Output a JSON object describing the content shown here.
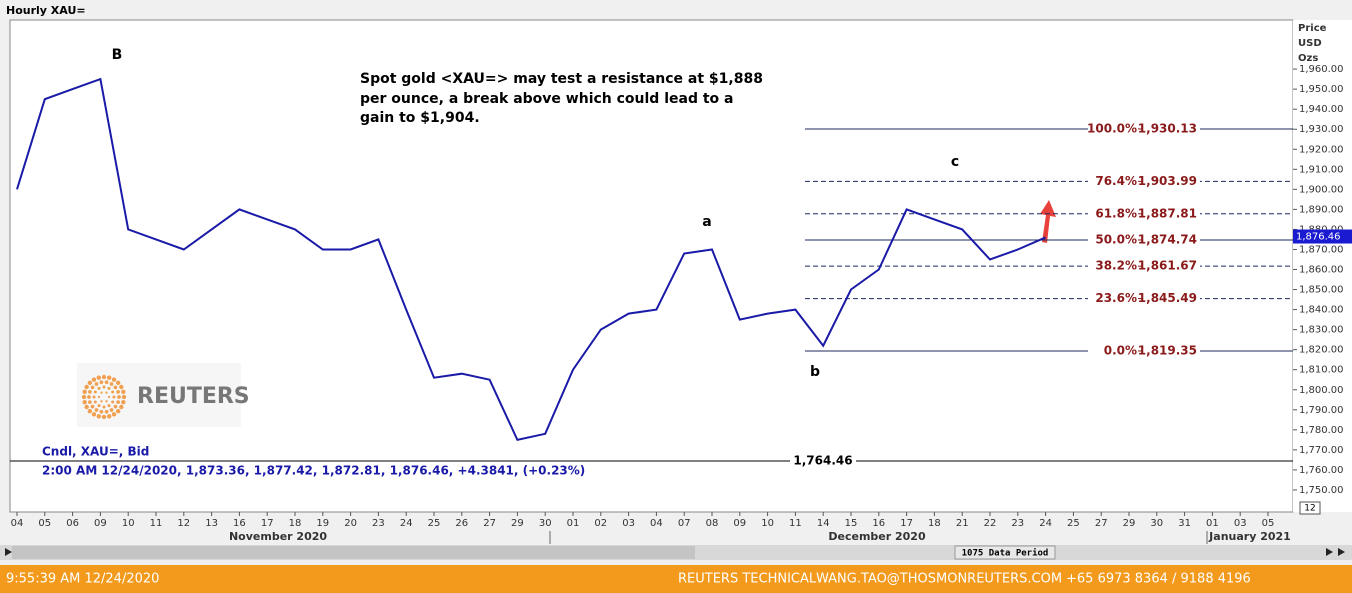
{
  "chart_data": {
    "type": "line",
    "title": "Hourly XAU=",
    "ylabel": [
      "Price",
      "USD",
      "Ozs"
    ],
    "categories": [
      "04",
      "05",
      "06",
      "09",
      "10",
      "11",
      "12",
      "13",
      "16",
      "17",
      "18",
      "19",
      "20",
      "23",
      "24",
      "25",
      "26",
      "27",
      "29",
      "30",
      "01",
      "02",
      "03",
      "04",
      "07",
      "08",
      "09",
      "10",
      "11",
      "14",
      "15",
      "16",
      "17",
      "18",
      "21",
      "22",
      "23",
      "24",
      "25",
      "27",
      "29",
      "30",
      "31",
      "01",
      "03",
      "05"
    ],
    "months": [
      "November 2020",
      "December 2020",
      "January 2021"
    ],
    "series": [
      {
        "name": "Cndl, XAU=, Bid",
        "color": "#1a1aa8",
        "values": [
          1900,
          1945,
          1950,
          1955,
          1880,
          1875,
          1870,
          1880,
          1890,
          1885,
          1880,
          1870,
          1870,
          1875,
          1840,
          1806,
          1808,
          1805,
          1775,
          1778,
          1810,
          1830,
          1838,
          1840,
          1868,
          1870,
          1835,
          1838,
          1840,
          1822,
          1850,
          1860,
          1890,
          1885,
          1880,
          1865,
          1870,
          1876,
          null,
          null,
          null,
          null,
          null,
          null,
          null,
          null
        ]
      }
    ],
    "last_bar": "2:00 AM 12/24/2020, 1,873.36, 1,877.42, 1,872.81, 1,876.46, +4.3841, (+0.23%)",
    "last_price": {
      "value": 1876.46,
      "label": "1,876.46"
    },
    "support": {
      "value": 1764.46,
      "label": "1,764.46"
    },
    "fib_levels": [
      {
        "pct": "100.0%",
        "value": 1930.13,
        "label": "1,930.13"
      },
      {
        "pct": "76.4%",
        "value": 1903.99,
        "label": "1,903.99"
      },
      {
        "pct": "61.8%",
        "value": 1887.81,
        "label": "1,887.81"
      },
      {
        "pct": "50.0%",
        "value": 1874.74,
        "label": "1,874.74"
      },
      {
        "pct": "38.2%",
        "value": 1861.67,
        "label": "1,861.67"
      },
      {
        "pct": "23.6%",
        "value": 1845.49,
        "label": "1,845.49"
      },
      {
        "pct": "0.0%",
        "value": 1819.35,
        "label": "1,819.35"
      }
    ],
    "wave_labels": [
      "B",
      "a",
      "b",
      "c"
    ],
    "annotation": [
      "Spot gold <XAU=> may test a resistance at $1,888",
      "per ounce, a break above which could lead to a",
      "gain to $1,904."
    ],
    "watermark": "REUTERS",
    "data_period": "1075 Data Period",
    "zoom": "12",
    "ylim": [
      1739,
      1984.5
    ],
    "yticks": [
      {
        "value": 1750,
        "label": "1,750.00"
      },
      {
        "value": 1760,
        "label": "1,760.00"
      },
      {
        "value": 1770,
        "label": "1,770.00"
      },
      {
        "value": 1780,
        "label": "1,780.00"
      },
      {
        "value": 1790,
        "label": "1,790.00"
      },
      {
        "value": 1800,
        "label": "1,800.00"
      },
      {
        "value": 1810,
        "label": "1,810.00"
      },
      {
        "value": 1820,
        "label": "1,820.00"
      },
      {
        "value": 1830,
        "label": "1,830.00"
      },
      {
        "value": 1840,
        "label": "1,840.00"
      },
      {
        "value": 1850,
        "label": "1,850.00"
      },
      {
        "value": 1860,
        "label": "1,860.00"
      },
      {
        "value": 1870,
        "label": "1,870.00"
      },
      {
        "value": 1880,
        "label": "1,880.00"
      },
      {
        "value": 1890,
        "label": "1,890.00"
      },
      {
        "value": 1900,
        "label": "1,900.00"
      },
      {
        "value": 1910,
        "label": "1,910.00"
      },
      {
        "value": 1920,
        "label": "1,920.00"
      },
      {
        "value": 1930,
        "label": "1,930.00"
      },
      {
        "value": 1940,
        "label": "1,940.00"
      },
      {
        "value": 1950,
        "label": "1,950.00"
      },
      {
        "value": 1960,
        "label": "1,960.00"
      }
    ],
    "grid": false
  },
  "footer": {
    "time": "9:55:39 AM 12/24/2020",
    "contact": [
      "REUTERS TECHNICAL",
      "WANG.TAO@THOSMONREUTERS.COM",
      "+65 6973 8364 / 9188 4196"
    ]
  }
}
